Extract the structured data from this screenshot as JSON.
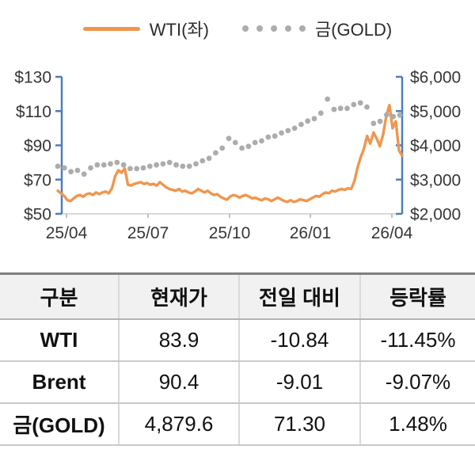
{
  "legend": {
    "wti_label": "WTI(좌)",
    "gold_label": "금(GOLD)"
  },
  "colors": {
    "wti_orange": "#F0964F",
    "gold_gray": "#ACACAC",
    "axis_blue": "#4E7DBE",
    "baseline_gray": "#D9D9D9",
    "minor_tick_gray": "#BFBFBF"
  },
  "chart_data": {
    "type": "line",
    "x_ticks": [
      "25/04",
      "25/07",
      "25/10",
      "26/01",
      "26/04"
    ],
    "left_axis": {
      "label_prefix": "$",
      "ticks": [
        "$130",
        "$110",
        "$90",
        "$70",
        "$50"
      ],
      "min": 50,
      "max": 130
    },
    "right_axis": {
      "label_prefix": "$",
      "ticks": [
        "$6,000",
        "$5,000",
        "$4,000",
        "$3,000",
        "$2,000"
      ],
      "min": 2000,
      "max": 6000
    },
    "grid": false,
    "legend_position": "top",
    "series": [
      {
        "name": "WTI(좌)",
        "style": "line",
        "axis": "left",
        "color": "#F0964F",
        "values": [
          63.5,
          62.0,
          60.5,
          58.0,
          57.5,
          59.0,
          60.5,
          61.0,
          60.0,
          61.5,
          62.0,
          61.0,
          62.5,
          61.5,
          62.5,
          63.0,
          62.0,
          65.0,
          72.0,
          75.5,
          74.0,
          76.5,
          67.0,
          66.5,
          67.5,
          68.0,
          68.5,
          67.5,
          68.0,
          67.0,
          67.5,
          66.5,
          68.5,
          67.0,
          65.5,
          64.5,
          64.0,
          63.5,
          64.5,
          63.0,
          63.5,
          62.5,
          62.0,
          63.0,
          64.5,
          63.5,
          62.5,
          63.5,
          62.0,
          61.0,
          61.5,
          60.0,
          59.0,
          58.3,
          60.0,
          61.0,
          60.5,
          59.5,
          60.5,
          61.0,
          60.0,
          59.0,
          59.5,
          58.5,
          58.0,
          59.0,
          58.5,
          57.5,
          58.5,
          59.5,
          58.5,
          57.5,
          57.0,
          58.0,
          57.0,
          57.5,
          58.5,
          58.0,
          57.5,
          58.5,
          59.5,
          60.5,
          60.0,
          61.5,
          62.5,
          62.0,
          63.5,
          63.0,
          64.0,
          64.5,
          64.0,
          65.0,
          64.5,
          69.0,
          77.0,
          83.0,
          88.0,
          95.5,
          91.0,
          97.5,
          94.0,
          89.5,
          96.0,
          107.0,
          113.5,
          100.0,
          104.0,
          87.0,
          83.9
        ]
      },
      {
        "name": "금(GOLD)",
        "style": "dots",
        "axis": "right",
        "color": "#ACACAC",
        "values": [
          3390,
          3340,
          3230,
          3270,
          3160,
          3340,
          3430,
          3430,
          3460,
          3500,
          3430,
          3320,
          3320,
          3340,
          3390,
          3430,
          3460,
          3500,
          3430,
          3390,
          3390,
          3460,
          3550,
          3620,
          3780,
          3920,
          4200,
          4080,
          3920,
          3970,
          4080,
          4130,
          4240,
          4270,
          4360,
          4430,
          4500,
          4610,
          4710,
          4780,
          4940,
          5350,
          5050,
          5080,
          5080,
          5190,
          5240,
          5120,
          4640,
          4700,
          4890,
          4840,
          4880
        ]
      }
    ]
  },
  "table": {
    "headers": [
      "구분",
      "현재가",
      "전일 대비",
      "등락률"
    ],
    "rows": [
      [
        "WTI",
        "83.9",
        "-10.84",
        "-11.45%"
      ],
      [
        "Brent",
        "90.4",
        "-9.01",
        "-9.07%"
      ],
      [
        "금(GOLD)",
        "4,879.6",
        "71.30",
        "1.48%"
      ]
    ]
  }
}
